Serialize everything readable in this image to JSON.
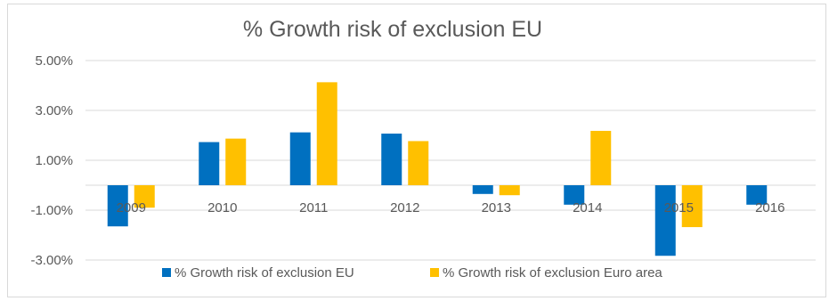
{
  "chart_data": {
    "type": "bar",
    "title": "% Growth risk of exclusion EU",
    "categories": [
      "2009",
      "2010",
      "2011",
      "2012",
      "2013",
      "2014",
      "2015",
      "2016"
    ],
    "series": [
      {
        "name": "% Growth risk of exclusion EU",
        "color": "#0070C0",
        "values": [
          -1.65,
          1.73,
          2.12,
          2.07,
          -0.35,
          -0.78,
          -2.83,
          -0.78
        ]
      },
      {
        "name": "% Growth risk of exclusion Euro area",
        "color": "#FFC000",
        "values": [
          -0.9,
          1.87,
          4.13,
          1.77,
          -0.4,
          2.18,
          -1.68,
          0.0
        ]
      }
    ],
    "yticks": [
      "5.00%",
      "3.00%",
      "1.00%",
      "-1.00%",
      "-3.00%"
    ],
    "ylim": [
      -3,
      5
    ],
    "xlabel": "",
    "ylabel": "",
    "grid": true,
    "legend": "bottom"
  }
}
